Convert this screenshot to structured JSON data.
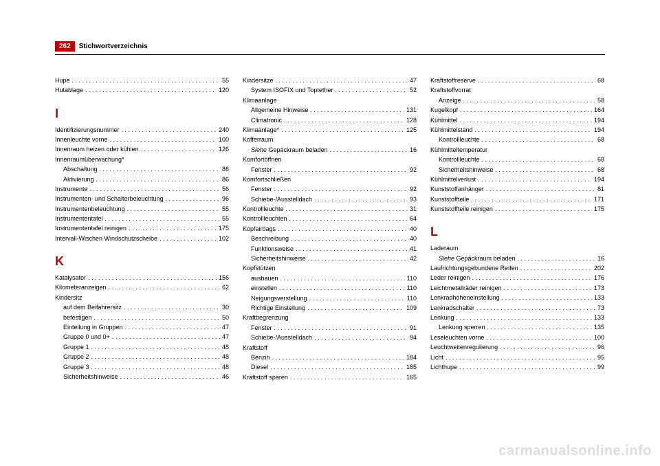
{
  "header": {
    "page_number": "262",
    "title": "Stichwortverzeichnis"
  },
  "watermark": "carmanualsonline.info",
  "columns": [
    {
      "groups": [
        {
          "entries": [
            {
              "label": "Hupe",
              "page": "55"
            },
            {
              "label": "Hutablage",
              "page": "120"
            }
          ]
        },
        {
          "heading": "I",
          "entries": [
            {
              "label": "Identifizierungsnummer",
              "page": "240"
            },
            {
              "label": "Innenleuchte vorne",
              "page": "100"
            },
            {
              "label": "Innenraum heizen oder kühlen",
              "page": "126"
            },
            {
              "label": "Innenraumüberwachung*",
              "nopage": true
            },
            {
              "label": "Abschaltung",
              "page": "86",
              "sub": true
            },
            {
              "label": "Aktivierung",
              "page": "86",
              "sub": true
            },
            {
              "label": "Instrumente",
              "page": "56"
            },
            {
              "label": "Instrumenten- und Schalterbeleuchtung",
              "page": "96"
            },
            {
              "label": "Instrumentenbeleuchtung",
              "page": "55"
            },
            {
              "label": "Instrumententafel",
              "page": "55"
            },
            {
              "label": "Instrumententafel reinigen",
              "page": "175"
            },
            {
              "label": "Intervall-Wischen Windschutzscheibe",
              "page": "102"
            }
          ]
        },
        {
          "heading": "K",
          "entries": [
            {
              "label": "Katalysator",
              "page": "156"
            },
            {
              "label": "Kilometeranzeigen",
              "page": "62"
            },
            {
              "label": "Kindersitz",
              "nopage": true
            },
            {
              "label": "auf dem Beifahrersitz",
              "page": "30",
              "sub": true
            },
            {
              "label": "befestigen",
              "page": "50",
              "sub": true
            },
            {
              "label": "Einteilung in Gruppen",
              "page": "47",
              "sub": true
            },
            {
              "label": "Gruppe 0 und 0+",
              "page": "47",
              "sub": true
            },
            {
              "label": "Gruppe 1",
              "page": "48",
              "sub": true
            },
            {
              "label": "Gruppe 2",
              "page": "48",
              "sub": true
            },
            {
              "label": "Gruppe 3",
              "page": "48",
              "sub": true
            },
            {
              "label": "Sicherheitshinweise",
              "page": "46",
              "sub": true
            }
          ]
        }
      ]
    },
    {
      "groups": [
        {
          "entries": [
            {
              "label": "Kindersitze",
              "page": "47"
            },
            {
              "label": "System ISOFIX und Toptether",
              "page": "52",
              "sub": true
            },
            {
              "label": "Klimaanlage",
              "nopage": true
            },
            {
              "label": "Allgemeine Hinweise",
              "page": "131",
              "sub": true
            },
            {
              "label": "Climatronic",
              "page": "128",
              "sub": true
            },
            {
              "label": "Klimaanlage*",
              "page": "125"
            },
            {
              "label": "Kofferraum",
              "nopage": true
            },
            {
              "label_html": "<span class='italic'>Siehe</span> Gepäckraum beladen",
              "page": "16",
              "sub": true
            },
            {
              "label": "Komfortöffnen",
              "nopage": true
            },
            {
              "label": "Fenster",
              "page": "92",
              "sub": true
            },
            {
              "label": "Komfortschließen",
              "nopage": true
            },
            {
              "label": "Fenster",
              "page": "92",
              "sub": true
            },
            {
              "label": "Schiebe-/Ausstelldach",
              "page": "93",
              "sub": true
            },
            {
              "label": "Kontrollleuchte",
              "page": "31"
            },
            {
              "label": "Kontrollleuchten",
              "page": "64"
            },
            {
              "label": "Kopfairbags",
              "page": "40"
            },
            {
              "label": "Beschreibung",
              "page": "40",
              "sub": true
            },
            {
              "label": "Funktionsweise",
              "page": "41",
              "sub": true
            },
            {
              "label": "Sicherheitshinweise",
              "page": "42",
              "sub": true
            },
            {
              "label": "Kopfstützen",
              "nopage": true
            },
            {
              "label": "ausbauen",
              "page": "110",
              "sub": true
            },
            {
              "label": "einstellen",
              "page": "110",
              "sub": true
            },
            {
              "label": "Neigungsverstellung",
              "page": "110",
              "sub": true
            },
            {
              "label": "Richtige Einstellung",
              "page": "109",
              "sub": true
            },
            {
              "label": "Kraftbegrenzung",
              "nopage": true
            },
            {
              "label": "Fenster",
              "page": "91",
              "sub": true
            },
            {
              "label": "Schiebe-/Ausstelldach",
              "page": "94",
              "sub": true
            },
            {
              "label": "Kraftstoff",
              "nopage": true
            },
            {
              "label": "Benzin",
              "page": "184",
              "sub": true
            },
            {
              "label": "Diesel",
              "page": "185",
              "sub": true
            },
            {
              "label": "Kraftstoff sparen",
              "page": "165"
            }
          ]
        }
      ]
    },
    {
      "groups": [
        {
          "entries": [
            {
              "label": "Kraftstoffreserve",
              "page": "68"
            },
            {
              "label": "Kraftstoffvorrat",
              "nopage": true
            },
            {
              "label": "Anzeige",
              "page": "58",
              "sub": true
            },
            {
              "label": "Kugelkopf",
              "page": "164"
            },
            {
              "label": "Kühlmittel",
              "page": "194"
            },
            {
              "label": "Kühlmittelstand",
              "page": "194"
            },
            {
              "label": "Kontrollleuchte",
              "page": "68",
              "sub": true
            },
            {
              "label": "Kühlmitteltemperatur",
              "nopage": true
            },
            {
              "label": "Kontrollleuchte",
              "page": "68",
              "sub": true
            },
            {
              "label": "Sicherheitshinweise",
              "page": "68",
              "sub": true
            },
            {
              "label": "Kühlmittelverlust",
              "page": "194"
            },
            {
              "label": "Kunststoffanhänger",
              "page": "81"
            },
            {
              "label": "Kunststoffteile",
              "page": "171"
            },
            {
              "label": "Kunststoffteile reinigen",
              "page": "175"
            }
          ]
        },
        {
          "heading": "L",
          "entries": [
            {
              "label": "Laderaum",
              "nopage": true
            },
            {
              "label_html": "<span class='italic'>Siehe</span> Gepäckraum beladen",
              "page": "16",
              "sub": true
            },
            {
              "label": "Laufrichtungsgebundene Reifen",
              "page": "202"
            },
            {
              "label": "Leder reinigen",
              "page": "176"
            },
            {
              "label": "Leichtmetallräder reinigen",
              "page": "173"
            },
            {
              "label": "Lenkradhöheneinstellung",
              "page": "133"
            },
            {
              "label": "Lenkradschalter",
              "page": "73"
            },
            {
              "label": "Lenkung",
              "page": "133"
            },
            {
              "label": "Lenkung sperren",
              "page": "135",
              "sub": true
            },
            {
              "label": "Leseleuchten vorne",
              "page": "100"
            },
            {
              "label": "Leuchtweitenregulierung",
              "page": "96"
            },
            {
              "label": "Licht",
              "page": "95"
            },
            {
              "label": "Lichthupe",
              "page": "99"
            }
          ]
        }
      ]
    }
  ]
}
